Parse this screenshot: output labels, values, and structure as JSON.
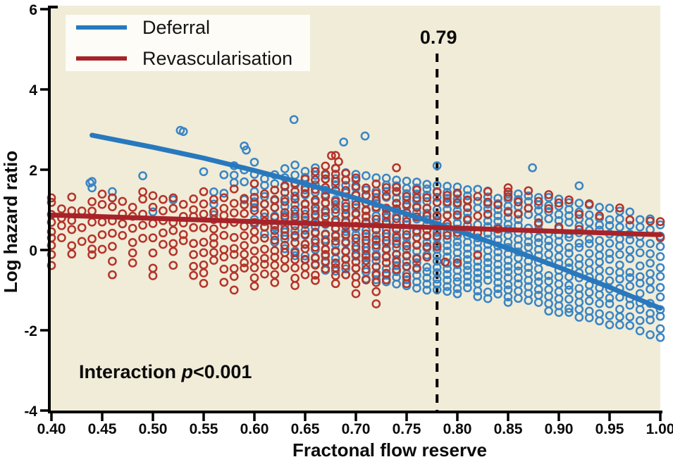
{
  "figure": {
    "page_background": "#ffffff",
    "plot_background": "#f0ecd8",
    "axis_color": "#000000"
  },
  "chart_data": {
    "type": "scatter",
    "xlabel": "Fractonal flow reserve",
    "ylabel": "Log hazard ratio",
    "xlim": [
      0.4,
      1.0
    ],
    "ylim": [
      -4,
      6
    ],
    "x_ticks": [
      0.4,
      0.45,
      0.5,
      0.55,
      0.6,
      0.65,
      0.7,
      0.75,
      0.8,
      0.85,
      0.9,
      0.95,
      1.0
    ],
    "x_tick_labels": [
      "0.40",
      "0.45",
      "0.50",
      "0.55",
      "0.60",
      "0.65",
      "0.70",
      "0.75",
      "0.80",
      "0.85",
      "0.90",
      "0.95",
      "1.00"
    ],
    "y_ticks": [
      -4,
      -2,
      0,
      2,
      4,
      6
    ],
    "y_tick_labels": [
      "-4",
      "-2",
      "0",
      "2",
      "4",
      "6"
    ],
    "grid": false,
    "legend_position": "top-left",
    "legend": [
      {
        "name": "Deferral",
        "color": "#2878BE"
      },
      {
        "name": "Revascularisation",
        "color": "#A82329"
      }
    ],
    "annotation": {
      "threshold_label": "0.79",
      "threshold_x": 0.78,
      "interaction_prefix": "Interaction ",
      "interaction_p": "p",
      "interaction_suffix": "<0.001"
    },
    "series": [
      {
        "name": "Deferral",
        "line_color": "#2878BE",
        "point_color": "#3A85C4",
        "trend": [
          [
            0.44,
            2.86
          ],
          [
            0.5,
            2.56
          ],
          [
            0.55,
            2.29
          ],
          [
            0.6,
            1.98
          ],
          [
            0.65,
            1.65
          ],
          [
            0.7,
            1.29
          ],
          [
            0.75,
            0.9
          ],
          [
            0.79,
            0.57
          ],
          [
            0.85,
            0.04
          ],
          [
            0.9,
            -0.43
          ],
          [
            0.95,
            -0.93
          ],
          [
            1.0,
            -1.45
          ]
        ],
        "columns": [
          [
            0.44,
            1.55,
            1.7,
            2
          ],
          [
            0.46,
            1.3,
            1.45,
            2
          ],
          [
            0.47,
            0.6,
            0.7,
            1
          ],
          [
            0.49,
            1.8,
            1.9,
            1
          ],
          [
            0.5,
            0.9,
            1.0,
            1
          ],
          [
            0.52,
            1.2,
            1.3,
            1
          ],
          [
            0.53,
            2.9,
            3.0,
            1
          ],
          [
            0.55,
            1.9,
            2.0,
            1
          ],
          [
            0.56,
            0.8,
            1.5,
            3
          ],
          [
            0.57,
            1.3,
            1.8,
            2
          ],
          [
            0.58,
            1.7,
            2.1,
            3
          ],
          [
            0.59,
            1.2,
            2.6,
            4
          ],
          [
            0.6,
            0.6,
            2.15,
            8
          ],
          [
            0.61,
            0.4,
            1.8,
            7
          ],
          [
            0.62,
            0.2,
            1.9,
            9
          ],
          [
            0.63,
            0.0,
            2.0,
            10
          ],
          [
            0.64,
            -0.2,
            2.1,
            11
          ],
          [
            0.65,
            -0.3,
            1.95,
            12
          ],
          [
            0.66,
            -0.4,
            2.0,
            13
          ],
          [
            0.67,
            -0.5,
            1.9,
            14
          ],
          [
            0.68,
            -0.55,
            2.0,
            15
          ],
          [
            0.69,
            -0.6,
            1.95,
            15
          ],
          [
            0.7,
            -0.65,
            1.9,
            16
          ],
          [
            0.71,
            -0.7,
            1.85,
            16
          ],
          [
            0.72,
            -0.75,
            1.8,
            17
          ],
          [
            0.73,
            -0.8,
            1.8,
            17
          ],
          [
            0.74,
            -0.85,
            1.75,
            18
          ],
          [
            0.75,
            -0.9,
            1.7,
            18
          ],
          [
            0.76,
            -0.95,
            1.7,
            18
          ],
          [
            0.77,
            -1.0,
            1.65,
            19
          ],
          [
            0.78,
            -1.0,
            1.6,
            19
          ],
          [
            0.79,
            -1.05,
            1.6,
            19
          ],
          [
            0.8,
            -1.1,
            1.55,
            19
          ],
          [
            0.81,
            -1.1,
            1.5,
            19
          ],
          [
            0.82,
            -1.15,
            1.5,
            19
          ],
          [
            0.83,
            -1.2,
            1.45,
            19
          ],
          [
            0.84,
            -1.25,
            1.45,
            19
          ],
          [
            0.85,
            -1.3,
            1.4,
            19
          ],
          [
            0.86,
            -1.35,
            1.4,
            18
          ],
          [
            0.87,
            -1.4,
            1.35,
            18
          ],
          [
            0.88,
            -1.45,
            1.3,
            18
          ],
          [
            0.89,
            -1.5,
            1.3,
            17
          ],
          [
            0.9,
            -1.55,
            1.25,
            17
          ],
          [
            0.91,
            -1.6,
            1.2,
            16
          ],
          [
            0.92,
            -1.65,
            1.15,
            16
          ],
          [
            0.93,
            -1.7,
            1.1,
            15
          ],
          [
            0.94,
            -1.75,
            1.05,
            15
          ],
          [
            0.95,
            -1.8,
            1.0,
            14
          ],
          [
            0.96,
            -1.85,
            0.95,
            14
          ],
          [
            0.97,
            -1.9,
            0.9,
            13
          ],
          [
            0.98,
            -2.0,
            0.8,
            13
          ],
          [
            0.99,
            -2.05,
            0.7,
            12
          ],
          [
            1.0,
            -2.2,
            0.6,
            12
          ]
        ],
        "outliers": [
          [
            0.438,
            1.67
          ],
          [
            0.527,
            2.98
          ],
          [
            0.592,
            2.49
          ],
          [
            0.639,
            3.25
          ],
          [
            0.688,
            2.69
          ],
          [
            0.709,
            2.84
          ],
          [
            0.78,
            2.1
          ],
          [
            0.874,
            2.05
          ],
          [
            0.92,
            1.6
          ]
        ]
      },
      {
        "name": "Revascularisation",
        "line_color": "#A82329",
        "point_color": "#B5342B",
        "trend": [
          [
            0.4,
            0.87
          ],
          [
            1.0,
            0.38
          ]
        ],
        "columns": [
          [
            0.4,
            -0.35,
            1.35,
            9
          ],
          [
            0.41,
            0.3,
            1.1,
            4
          ],
          [
            0.42,
            -0.1,
            1.3,
            6
          ],
          [
            0.43,
            0.2,
            0.9,
            3
          ],
          [
            0.44,
            -0.2,
            1.2,
            6
          ],
          [
            0.45,
            0.1,
            1.4,
            5
          ],
          [
            0.46,
            -0.55,
            1.3,
            7
          ],
          [
            0.47,
            0.3,
            1.15,
            4
          ],
          [
            0.48,
            -0.3,
            1.1,
            6
          ],
          [
            0.49,
            0.2,
            1.5,
            5
          ],
          [
            0.5,
            -0.7,
            1.3,
            7
          ],
          [
            0.51,
            0.1,
            1.2,
            5
          ],
          [
            0.52,
            -0.4,
            1.35,
            7
          ],
          [
            0.53,
            0.2,
            1.1,
            5
          ],
          [
            0.54,
            -0.6,
            1.3,
            8
          ],
          [
            0.55,
            -0.9,
            1.4,
            9
          ],
          [
            0.56,
            -0.3,
            1.2,
            8
          ],
          [
            0.57,
            -0.75,
            1.35,
            9
          ],
          [
            0.58,
            -1.0,
            1.5,
            10
          ],
          [
            0.59,
            -0.5,
            1.3,
            9
          ],
          [
            0.6,
            -0.9,
            1.6,
            12
          ],
          [
            0.61,
            -0.6,
            1.4,
            10
          ],
          [
            0.62,
            -0.8,
            1.5,
            12
          ],
          [
            0.63,
            -0.5,
            1.6,
            11
          ],
          [
            0.64,
            -0.9,
            1.7,
            13
          ],
          [
            0.65,
            -0.6,
            1.8,
            13
          ],
          [
            0.66,
            -0.8,
            1.9,
            14
          ],
          [
            0.67,
            -0.5,
            2.1,
            15
          ],
          [
            0.68,
            -0.9,
            2.3,
            16
          ],
          [
            0.69,
            -0.6,
            1.9,
            14
          ],
          [
            0.7,
            -1.1,
            1.8,
            15
          ],
          [
            0.71,
            -0.7,
            1.6,
            13
          ],
          [
            0.72,
            -1.3,
            1.7,
            14
          ],
          [
            0.73,
            -0.8,
            1.5,
            12
          ],
          [
            0.74,
            -0.5,
            1.6,
            11
          ],
          [
            0.75,
            -0.9,
            1.4,
            10
          ],
          [
            0.76,
            -0.4,
            1.5,
            9
          ],
          [
            0.77,
            -0.2,
            1.3,
            7
          ],
          [
            0.78,
            0.0,
            1.5,
            6
          ],
          [
            0.79,
            0.3,
            1.4,
            5
          ],
          [
            0.8,
            0.5,
            1.5,
            4
          ],
          [
            0.81,
            0.8,
            1.3,
            3
          ],
          [
            0.82,
            -0.3,
            1.4,
            4
          ],
          [
            0.83,
            0.9,
            1.5,
            3
          ],
          [
            0.84,
            0.6,
            1.2,
            2
          ],
          [
            0.85,
            1.0,
            1.5,
            3
          ],
          [
            0.86,
            0.9,
            1.3,
            2
          ],
          [
            0.87,
            1.1,
            1.4,
            2
          ],
          [
            0.88,
            0.7,
            1.2,
            2
          ],
          [
            0.89,
            1.0,
            1.3,
            2
          ],
          [
            0.9,
            0.6,
            1.1,
            2
          ],
          [
            0.91,
            1.2,
            1.3,
            1
          ],
          [
            0.92,
            0.5,
            0.9,
            2
          ],
          [
            0.93,
            1.1,
            1.2,
            1
          ],
          [
            0.94,
            0.8,
            0.9,
            1
          ],
          [
            0.96,
            1.0,
            1.1,
            1
          ],
          [
            0.97,
            0.7,
            0.8,
            1
          ],
          [
            1.0,
            0.4,
            0.75,
            2
          ]
        ],
        "outliers": [
          [
            0.676,
            2.35
          ],
          [
            0.683,
            2.2
          ],
          [
            0.74,
            2.05
          ],
          [
            0.788,
            -0.3
          ],
          [
            0.8,
            -0.32
          ],
          [
            0.85,
            1.55
          ],
          [
            0.99,
            0.72
          ]
        ]
      }
    ]
  }
}
